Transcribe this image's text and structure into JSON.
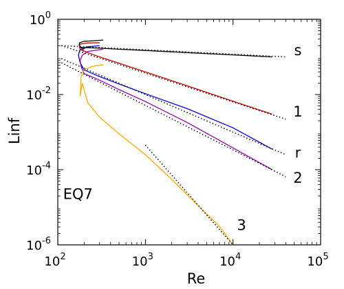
{
  "chart_data": {
    "type": "line",
    "title": "",
    "xlabel": "Re",
    "ylabel": "Linf",
    "x_scale": "log",
    "y_scale": "log",
    "xlim": [
      100,
      100000
    ],
    "ylim": [
      1e-06,
      1
    ],
    "grid": false,
    "x_ticks": [
      {
        "value": 100,
        "base": "10",
        "exp": "2"
      },
      {
        "value": 1000,
        "base": "10",
        "exp": "3"
      },
      {
        "value": 10000,
        "base": "10",
        "exp": "4"
      },
      {
        "value": 100000,
        "base": "10",
        "exp": "5"
      }
    ],
    "y_ticks": [
      {
        "value": 1,
        "base": "10",
        "exp": "0"
      },
      {
        "value": 0.01,
        "base": "10",
        "exp": "-2"
      },
      {
        "value": 0.0001,
        "base": "10",
        "exp": "-4"
      },
      {
        "value": 1e-06,
        "base": "10",
        "exp": "-6"
      }
    ],
    "annotations": [
      {
        "text": "EQ7",
        "x": 170,
        "y": 1.65e-05
      }
    ],
    "series": [
      {
        "label": "s",
        "color": "#000000",
        "label_pos": {
          "x": 55000,
          "y": 0.11
        },
        "x": [
          180,
          200,
          240,
          300,
          500,
          1000,
          3000,
          10000,
          28000
        ],
        "y": [
          0.18,
          0.178,
          0.175,
          0.17,
          0.16,
          0.148,
          0.13,
          0.113,
          0.1
        ],
        "fit": {
          "x": [
            110,
            40000
          ],
          "y": [
            0.2,
            0.1
          ]
        }
      },
      {
        "label": "1",
        "color": "#cc0000",
        "label_pos": {
          "x": 55000,
          "y": 0.0026
        },
        "x": [
          180,
          220,
          300,
          500,
          1000,
          3000,
          10000,
          28000
        ],
        "y": [
          0.16,
          0.13,
          0.1,
          0.068,
          0.04,
          0.017,
          0.0066,
          0.003
        ],
        "fit": {
          "x": [
            110,
            40000
          ],
          "y": [
            0.2,
            0.0022
          ]
        }
      },
      {
        "label": "r",
        "color": "#0000dd",
        "label_pos": {
          "x": 55000,
          "y": 0.00021
        },
        "x": [
          200,
          250,
          300,
          500,
          1000,
          3000,
          10000,
          28000
        ],
        "y": [
          0.045,
          0.036,
          0.03,
          0.019,
          0.0105,
          0.0042,
          0.0013,
          0.00035
        ],
        "fit": {
          "x": [
            110,
            40000
          ],
          "y": [
            0.09,
            0.00025
          ]
        }
      },
      {
        "label": "2",
        "color": "#9900aa",
        "label_pos": {
          "x": 55000,
          "y": 4.5e-05
        },
        "x": [
          200,
          250,
          300,
          500,
          1000,
          3000,
          10000,
          28000
        ],
        "y": [
          0.036,
          0.029,
          0.024,
          0.0135,
          0.0065,
          0.0018,
          0.00038,
          0.0001
        ],
        "fit": {
          "x": [
            110,
            40000
          ],
          "y": [
            0.07,
            6.5e-05
          ]
        }
      },
      {
        "label": "3",
        "color": "#ffaa00",
        "label_pos": {
          "x": 12500,
          "y": 2.5e-06
        },
        "x": [
          190,
          220,
          300,
          500,
          1000,
          2000,
          4000,
          7000,
          10000
        ],
        "y": [
          0.02,
          0.006,
          0.0025,
          0.0009,
          0.00025,
          5.5e-05,
          1.1e-05,
          3.1e-06,
          1e-06
        ],
        "fit": {
          "x": [
            1000,
            10000
          ],
          "y": [
            0.00045,
            1e-06
          ]
        }
      }
    ],
    "upper_branches": [
      {
        "color": "#000000",
        "x": [
          200,
          180,
          175,
          178,
          200,
          260,
          330
        ],
        "y": [
          0.16,
          0.18,
          0.21,
          0.24,
          0.26,
          0.27,
          0.28
        ]
      },
      {
        "color": "#cc0000",
        "x": [
          200,
          180,
          176,
          180,
          220,
          300
        ],
        "y": [
          0.14,
          0.16,
          0.19,
          0.22,
          0.235,
          0.24
        ]
      },
      {
        "color": "#0000dd",
        "x": [
          200,
          180,
          172,
          178,
          220,
          300
        ],
        "y": [
          0.045,
          0.07,
          0.11,
          0.15,
          0.185,
          0.2
        ]
      },
      {
        "color": "#9900aa",
        "x": [
          200,
          185,
          180,
          190,
          220,
          330
        ],
        "y": [
          0.036,
          0.055,
          0.08,
          0.11,
          0.14,
          0.16
        ]
      },
      {
        "color": "#ffaa00",
        "x": [
          190,
          180,
          185,
          200,
          250,
          330
        ],
        "y": [
          0.02,
          0.009,
          0.03,
          0.046,
          0.056,
          0.062
        ]
      }
    ]
  }
}
